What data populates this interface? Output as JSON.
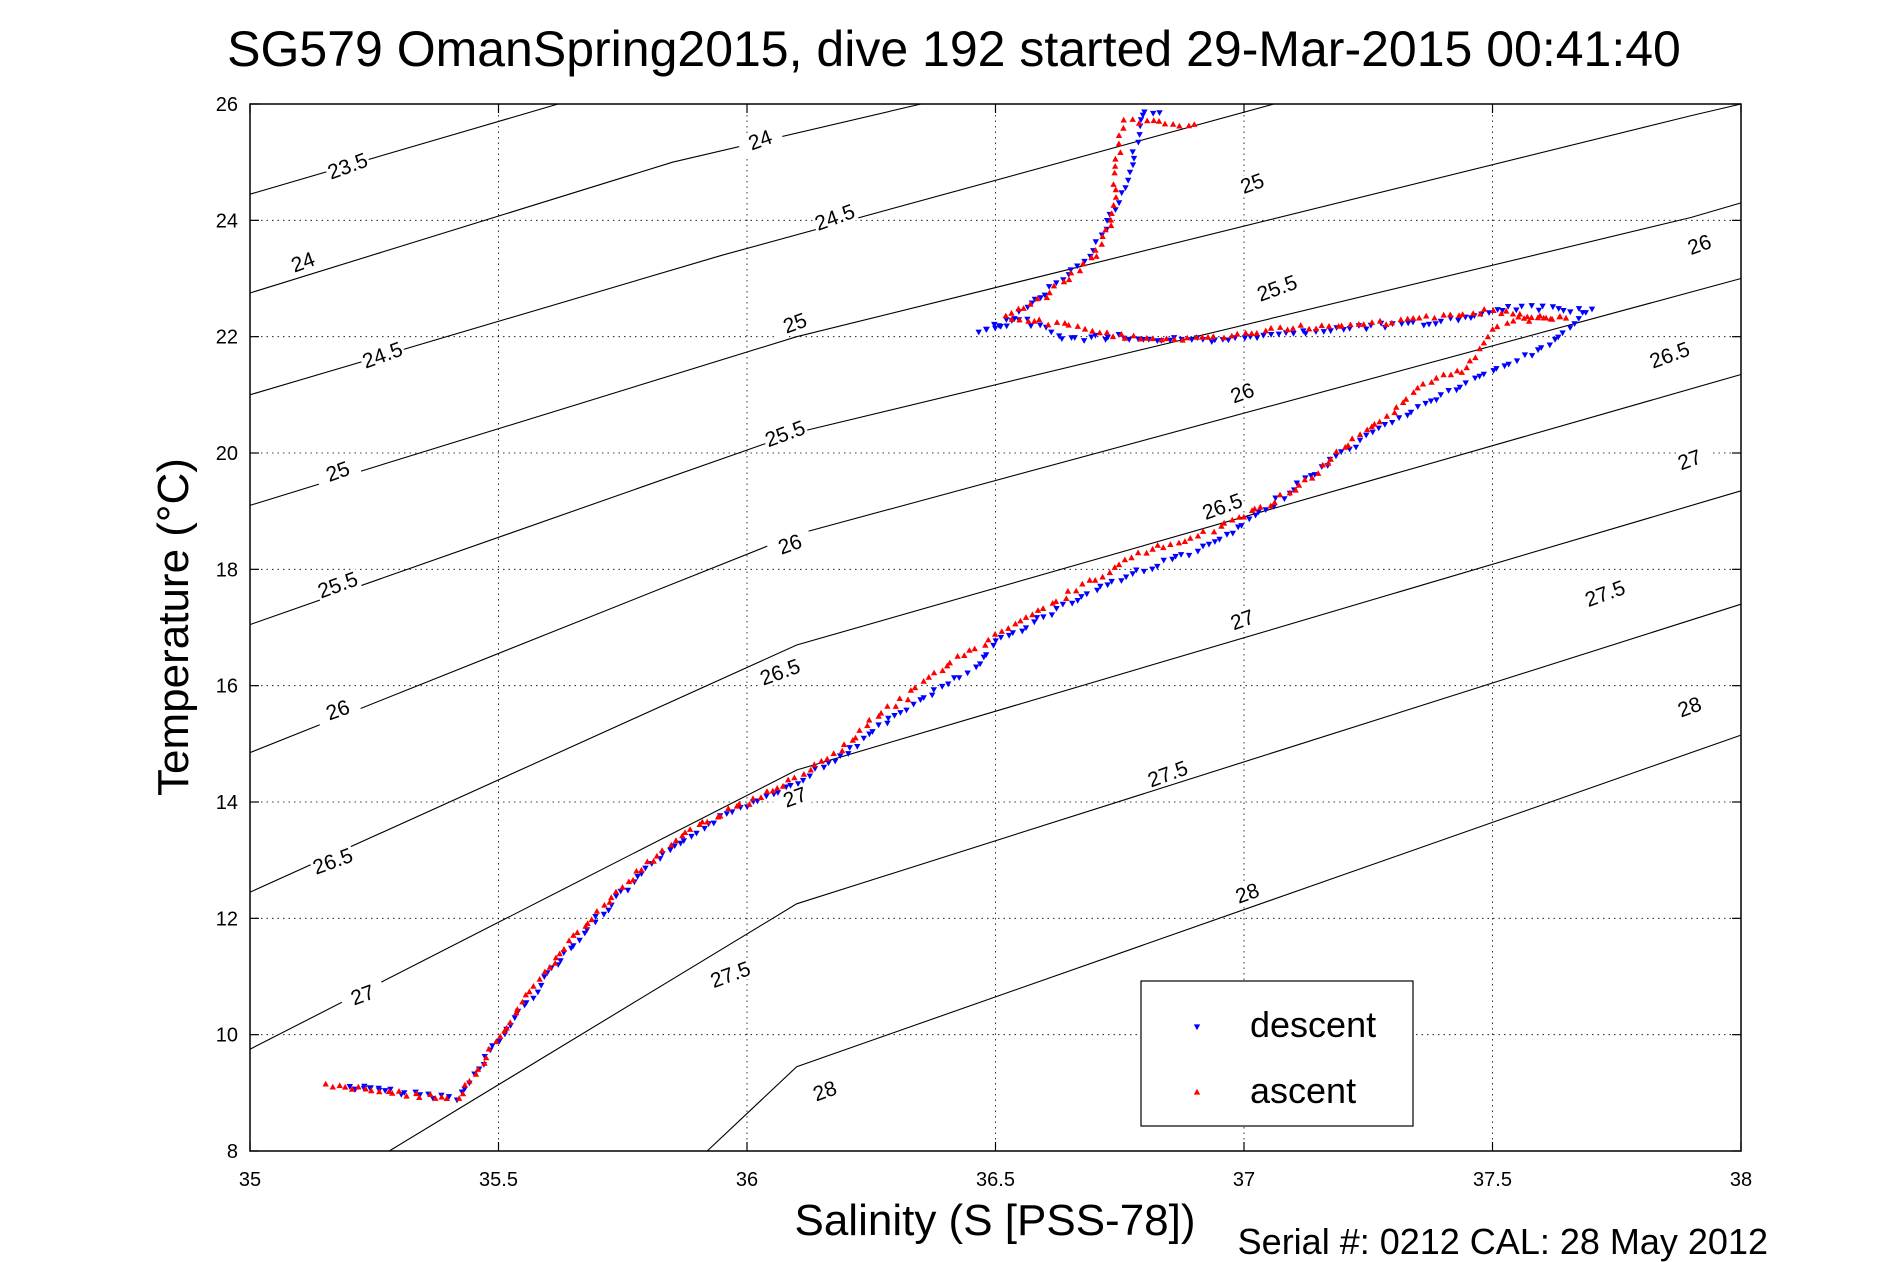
{
  "chart_data": {
    "type": "scatter",
    "title": "SG579 OmanSpring2015, dive 192 started 29-Mar-2015 00:41:40",
    "xlabel": "Salinity (S [PSS-78])",
    "ylabel": "Temperature (°C)",
    "xlim": [
      35,
      38
    ],
    "ylim": [
      8,
      26
    ],
    "xticks": [
      "35",
      "35.5",
      "36",
      "36.5",
      "37",
      "37.5",
      "38"
    ],
    "yticks": [
      "8",
      "10",
      "12",
      "14",
      "16",
      "18",
      "20",
      "22",
      "24",
      "26"
    ],
    "grid": true,
    "legend_position": "bottom-right",
    "footer": "Serial #: 0212  CAL: 28 May 2012",
    "contours": [
      {
        "level": "23.5",
        "points": [
          [
            35.0,
            24.45
          ],
          [
            35.62,
            26.0
          ]
        ],
        "label_at": [
          35.2,
          24.9
        ]
      },
      {
        "level": "24",
        "points": [
          [
            35.0,
            22.75
          ],
          [
            35.85,
            25.0
          ],
          [
            36.35,
            26.0
          ]
        ],
        "label_at": [
          36.03,
          25.3
        ]
      },
      {
        "level": "24.5",
        "points": [
          [
            35.0,
            21.0
          ],
          [
            35.95,
            23.4
          ],
          [
            37.06,
            26.0
          ]
        ],
        "label_at": [
          36.18,
          24.0
        ]
      },
      {
        "level": "25",
        "points": [
          [
            35.0,
            19.1
          ],
          [
            36.1,
            22.0
          ],
          [
            37.9,
            25.8
          ],
          [
            38.0,
            26.0
          ]
        ],
        "label_at": [
          37.02,
          24.55
        ]
      },
      {
        "level": "25.5",
        "points": [
          [
            35.0,
            17.05
          ],
          [
            36.1,
            20.35
          ],
          [
            37.9,
            24.05
          ],
          [
            38.0,
            24.3
          ]
        ],
        "label_at": [
          37.07,
          22.8
        ]
      },
      {
        "level": "26",
        "points": [
          [
            35.0,
            14.85
          ],
          [
            36.1,
            18.6
          ],
          [
            38.0,
            23.0
          ]
        ],
        "label_at": [
          37.95,
          23.5
        ]
      },
      {
        "level": "26.5",
        "points": [
          [
            35.0,
            12.45
          ],
          [
            36.1,
            16.7
          ],
          [
            38.0,
            21.35
          ]
        ],
        "label_at": [
          37.9,
          21.6
        ]
      },
      {
        "level": "27",
        "points": [
          [
            35.0,
            9.75
          ],
          [
            36.1,
            14.55
          ],
          [
            38.0,
            19.35
          ]
        ],
        "label_at": [
          37.9,
          19.8
        ]
      },
      {
        "level": "27.5",
        "points": [
          [
            35.28,
            8.0
          ],
          [
            36.1,
            12.25
          ],
          [
            38.0,
            17.4
          ]
        ],
        "label_at": [
          37.73,
          17.45
        ]
      },
      {
        "level": "28",
        "points": [
          [
            35.92,
            8.0
          ],
          [
            36.1,
            9.45
          ],
          [
            38.0,
            15.15
          ]
        ],
        "label_at": [
          37.9,
          15.6
        ]
      }
    ],
    "contour_inline_labels": [
      {
        "level": "23.5",
        "at": [
          35.2,
          24.85
        ]
      },
      {
        "level": "24",
        "at": [
          35.11,
          23.2
        ]
      },
      {
        "level": "24.5",
        "at": [
          35.27,
          21.6
        ]
      },
      {
        "level": "25",
        "at": [
          35.18,
          19.6
        ]
      },
      {
        "level": "25.5",
        "at": [
          35.18,
          17.65
        ]
      },
      {
        "level": "26",
        "at": [
          35.18,
          15.5
        ]
      },
      {
        "level": "26.5",
        "at": [
          35.17,
          12.9
        ]
      },
      {
        "level": "27",
        "at": [
          35.23,
          10.6
        ]
      },
      {
        "level": "24",
        "at": [
          36.03,
          25.3
        ]
      },
      {
        "level": "24.5",
        "at": [
          36.18,
          23.97
        ]
      },
      {
        "level": "25",
        "at": [
          36.1,
          22.15
        ]
      },
      {
        "level": "25.5",
        "at": [
          36.08,
          20.25
        ]
      },
      {
        "level": "26",
        "at": [
          36.09,
          18.35
        ]
      },
      {
        "level": "26.5",
        "at": [
          36.07,
          16.15
        ]
      },
      {
        "level": "27",
        "at": [
          36.1,
          14.0
        ]
      },
      {
        "level": "27.5",
        "at": [
          35.97,
          10.95
        ]
      },
      {
        "level": "28",
        "at": [
          36.16,
          8.95
        ]
      },
      {
        "level": "25",
        "at": [
          37.02,
          24.55
        ]
      },
      {
        "level": "25.5",
        "at": [
          37.07,
          22.75
        ]
      },
      {
        "level": "26",
        "at": [
          37.0,
          20.95
        ]
      },
      {
        "level": "26.5",
        "at": [
          36.96,
          19.0
        ]
      },
      {
        "level": "27",
        "at": [
          37.0,
          17.05
        ]
      },
      {
        "level": "27.5",
        "at": [
          36.85,
          14.4
        ]
      },
      {
        "level": "28",
        "at": [
          37.01,
          12.35
        ]
      },
      {
        "level": "26",
        "at": [
          37.92,
          23.5
        ]
      },
      {
        "level": "26.5",
        "at": [
          37.86,
          21.6
        ]
      },
      {
        "level": "27",
        "at": [
          37.9,
          19.8
        ]
      },
      {
        "level": "27.5",
        "at": [
          37.73,
          17.5
        ]
      },
      {
        "level": "28",
        "at": [
          37.9,
          15.55
        ]
      }
    ],
    "series": [
      {
        "name": "descent",
        "color": "#0000ff",
        "marker": "triangle-down",
        "path": [
          [
            35.26,
            9.05
          ],
          [
            35.2,
            9.1
          ],
          [
            35.4,
            8.92
          ],
          [
            35.42,
            8.9
          ],
          [
            35.5,
            9.9
          ],
          [
            35.6,
            11.05
          ],
          [
            35.7,
            12.0
          ],
          [
            35.8,
            12.85
          ],
          [
            35.9,
            13.5
          ],
          [
            36.0,
            13.95
          ],
          [
            36.1,
            14.35
          ],
          [
            36.2,
            14.85
          ],
          [
            36.3,
            15.5
          ],
          [
            36.38,
            15.9
          ],
          [
            36.47,
            16.35
          ],
          [
            36.5,
            16.75
          ],
          [
            36.6,
            17.2
          ],
          [
            36.7,
            17.65
          ],
          [
            36.8,
            18.0
          ],
          [
            36.93,
            18.4
          ],
          [
            37.0,
            18.75
          ],
          [
            37.1,
            19.4
          ],
          [
            37.2,
            20.0
          ],
          [
            37.3,
            20.55
          ],
          [
            37.4,
            21.0
          ],
          [
            37.5,
            21.4
          ],
          [
            37.6,
            21.8
          ],
          [
            37.7,
            22.45
          ],
          [
            37.55,
            22.5
          ],
          [
            37.4,
            22.25
          ],
          [
            37.2,
            22.15
          ],
          [
            37.0,
            21.95
          ],
          [
            36.85,
            21.95
          ],
          [
            36.73,
            22.0
          ],
          [
            36.65,
            21.95
          ],
          [
            36.55,
            22.3
          ],
          [
            36.47,
            22.05
          ],
          [
            36.55,
            22.4
          ],
          [
            36.6,
            22.75
          ],
          [
            36.7,
            23.5
          ],
          [
            36.74,
            24.2
          ],
          [
            36.77,
            24.8
          ],
          [
            36.78,
            25.2
          ],
          [
            36.79,
            25.6
          ],
          [
            36.8,
            25.9
          ],
          [
            36.83,
            25.85
          ]
        ]
      },
      {
        "name": "ascent",
        "color": "#ff0000",
        "marker": "triangle-up",
        "path": [
          [
            35.15,
            9.15
          ],
          [
            35.4,
            8.9
          ],
          [
            35.42,
            8.9
          ],
          [
            35.5,
            9.95
          ],
          [
            35.6,
            11.15
          ],
          [
            35.7,
            12.1
          ],
          [
            35.8,
            12.95
          ],
          [
            35.9,
            13.6
          ],
          [
            36.0,
            14.0
          ],
          [
            36.1,
            14.4
          ],
          [
            36.2,
            14.95
          ],
          [
            36.27,
            15.55
          ],
          [
            36.32,
            15.8
          ],
          [
            36.4,
            16.35
          ],
          [
            36.5,
            16.85
          ],
          [
            36.6,
            17.35
          ],
          [
            36.7,
            17.85
          ],
          [
            36.8,
            18.3
          ],
          [
            36.95,
            18.7
          ],
          [
            37.1,
            19.35
          ],
          [
            37.2,
            20.1
          ],
          [
            37.3,
            20.7
          ],
          [
            37.35,
            21.1
          ],
          [
            37.4,
            21.35
          ],
          [
            37.45,
            21.45
          ],
          [
            37.5,
            22.1
          ],
          [
            37.55,
            22.3
          ],
          [
            37.65,
            22.3
          ],
          [
            37.5,
            22.45
          ],
          [
            37.3,
            22.25
          ],
          [
            37.1,
            22.15
          ],
          [
            36.9,
            21.95
          ],
          [
            36.75,
            22.0
          ],
          [
            36.68,
            22.15
          ],
          [
            36.52,
            22.35
          ],
          [
            36.6,
            22.7
          ],
          [
            36.7,
            23.4
          ],
          [
            36.73,
            23.9
          ],
          [
            36.74,
            24.4
          ],
          [
            36.74,
            24.9
          ],
          [
            36.75,
            25.3
          ],
          [
            36.76,
            25.7
          ],
          [
            36.9,
            25.65
          ]
        ]
      }
    ]
  }
}
